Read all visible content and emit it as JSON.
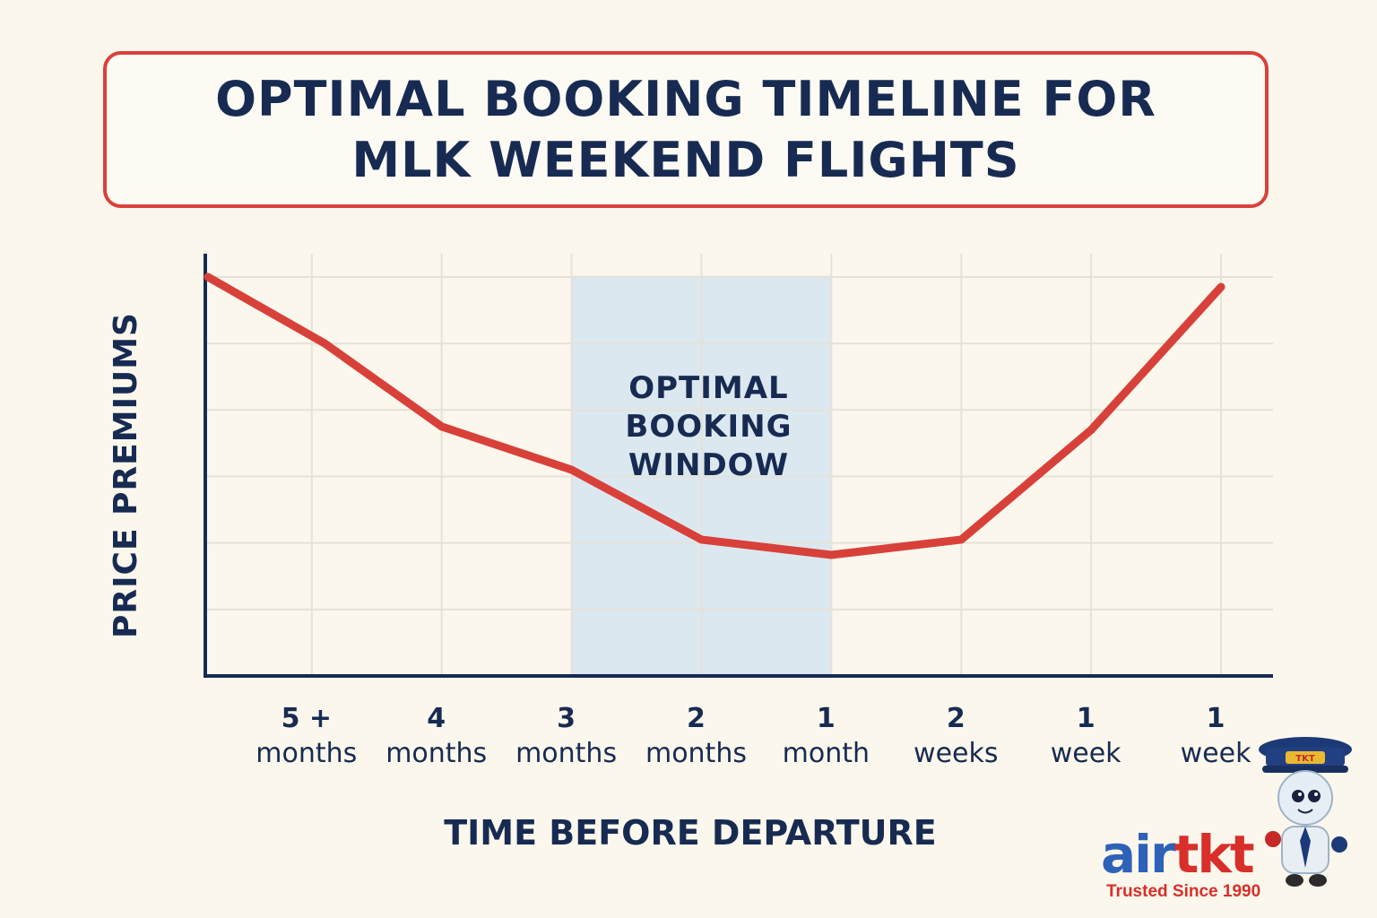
{
  "title": "OPTIMAL BOOKING TIMELINE FOR MLK WEEKEND FLIGHTS",
  "chart_data": {
    "type": "line",
    "title": "OPTIMAL BOOKING TIMELINE FOR MLK WEEKEND FLIGHTS",
    "xlabel": "TIME BEFORE DEPARTURE",
    "ylabel": "PRICE PREMIUMS",
    "categories": [
      "5 + months",
      "4 months",
      "3 months",
      "2 months",
      "1 month",
      "2 weeks",
      "1 week",
      "1 week"
    ],
    "series": [
      {
        "name": "Price premium",
        "color": "#d8413a",
        "x": [
          -0.8,
          0.1,
          1,
          2,
          3,
          4,
          5,
          6,
          7
        ],
        "values": [
          5.0,
          4.0,
          2.75,
          2.1,
          1.05,
          0.82,
          1.05,
          2.7,
          4.85
        ]
      }
    ],
    "xlim": [
      -0.82,
      7.4
    ],
    "ylim": [
      -1,
      5.35
    ],
    "grid": true,
    "highlight": {
      "label": "OPTIMAL BOOKING WINDOW",
      "from": 2,
      "to": 4,
      "color": "#dce8f0"
    }
  },
  "brand": {
    "name_part1": "air",
    "name_part2": "tkt",
    "tagline": "Trusted Since 1990",
    "badge": "TKT"
  }
}
